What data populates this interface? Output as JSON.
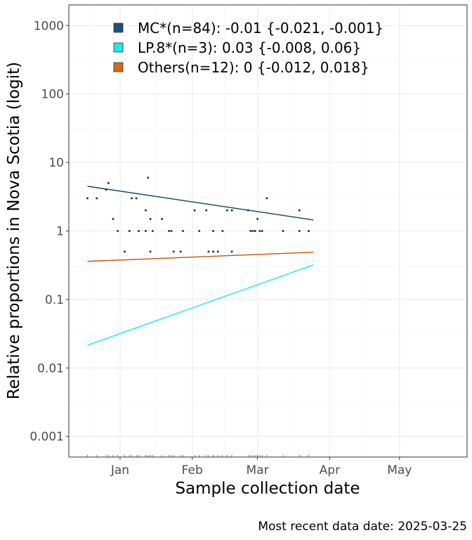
{
  "chart_data": {
    "type": "scatter",
    "title": "",
    "xlabel": "Sample collection date",
    "ylabel": "Relative proportions in Nova Scotia (logit)",
    "caption": "Most recent data date: 2025-03-25",
    "y_scale": "log10",
    "ylim": [
      0.0005,
      2000
    ],
    "xlim": [
      "2024-12-10",
      "2025-05-30"
    ],
    "x_ticks": [
      {
        "date": "2025-01-01",
        "label": "Jan"
      },
      {
        "date": "2025-02-01",
        "label": "Feb"
      },
      {
        "date": "2025-03-01",
        "label": "Mar"
      },
      {
        "date": "2025-04-01",
        "label": "Apr"
      },
      {
        "date": "2025-05-01",
        "label": "May"
      }
    ],
    "y_ticks": [
      {
        "value": 0.001,
        "label": "0.001"
      },
      {
        "value": 0.01,
        "label": "0.01"
      },
      {
        "value": 0.1,
        "label": "0.1"
      },
      {
        "value": 1,
        "label": "1"
      },
      {
        "value": 10,
        "label": "10"
      },
      {
        "value": 100,
        "label": "100"
      },
      {
        "value": 1000,
        "label": "1000"
      }
    ],
    "grid": true,
    "legend_position": "top-left",
    "series": [
      {
        "name": "MC*(n=84): -0.01 {-0.021, -0.001}",
        "color": "#1f4e79",
        "line_color": "#0b4566",
        "fit_start": [
          "2024-12-18",
          4.5
        ],
        "fit_end": [
          "2025-03-25",
          1.45
        ]
      },
      {
        "name": "LP.8*(n=3): 0.03 {-0.008, 0.06}",
        "color": "#22e6f0",
        "line_color": "#14e8f5",
        "fit_start": [
          "2024-12-18",
          0.0215
        ],
        "fit_end": [
          "2025-03-25",
          0.32
        ]
      },
      {
        "name": "Others(n=12): 0 {-0.012, 0.018}",
        "color": "#d2691e",
        "line_color": "#c2560f",
        "fit_start": [
          "2024-12-18",
          0.36
        ],
        "fit_end": [
          "2025-03-25",
          0.49
        ]
      }
    ],
    "points": [
      [
        "2024-12-18",
        3
      ],
      [
        "2024-12-22",
        3
      ],
      [
        "2024-12-26",
        4
      ],
      [
        "2024-12-27",
        5
      ],
      [
        "2024-12-29",
        1.5
      ],
      [
        "2024-12-31",
        1
      ],
      [
        "2025-01-03",
        0.5
      ],
      [
        "2025-01-05",
        1
      ],
      [
        "2025-01-06",
        3
      ],
      [
        "2025-01-08",
        3
      ],
      [
        "2025-01-09",
        1
      ],
      [
        "2025-01-12",
        1
      ],
      [
        "2025-01-12",
        2
      ],
      [
        "2025-01-13",
        6
      ],
      [
        "2025-01-14",
        1.5
      ],
      [
        "2025-01-14",
        0.5
      ],
      [
        "2025-01-15",
        1
      ],
      [
        "2025-01-19",
        1.5
      ],
      [
        "2025-01-22",
        1
      ],
      [
        "2025-01-23",
        1
      ],
      [
        "2025-01-24",
        0.5
      ],
      [
        "2025-01-27",
        0.5
      ],
      [
        "2025-01-28",
        1
      ],
      [
        "2025-02-02",
        2
      ],
      [
        "2025-02-04",
        1
      ],
      [
        "2025-02-07",
        2
      ],
      [
        "2025-02-08",
        0.5
      ],
      [
        "2025-02-10",
        1
      ],
      [
        "2025-02-10",
        0.5
      ],
      [
        "2025-02-12",
        0.5
      ],
      [
        "2025-02-14",
        1
      ],
      [
        "2025-02-16",
        2
      ],
      [
        "2025-02-18",
        2
      ],
      [
        "2025-02-18",
        0.5
      ],
      [
        "2025-02-25",
        2
      ],
      [
        "2025-02-26",
        1
      ],
      [
        "2025-02-27",
        1
      ],
      [
        "2025-02-28",
        1
      ],
      [
        "2025-03-01",
        1.5
      ],
      [
        "2025-03-02",
        1
      ],
      [
        "2025-03-03",
        1
      ],
      [
        "2025-03-05",
        3
      ],
      [
        "2025-03-12",
        1
      ],
      [
        "2025-03-19",
        2
      ],
      [
        "2025-03-19",
        1
      ],
      [
        "2025-03-23",
        1
      ]
    ]
  }
}
